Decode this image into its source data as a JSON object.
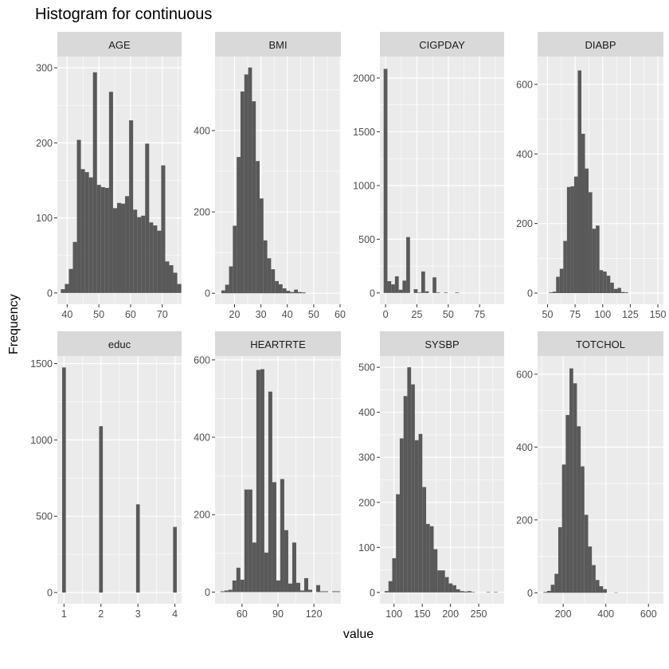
{
  "title": "Histogram for continuous",
  "xlabel": "value",
  "ylabel": "Frequency",
  "colors": {
    "panel_bg": "#ebebeb",
    "strip_bg": "#d9d9d9",
    "bar": "#595959",
    "grid": "#ffffff",
    "tick_text": "#4d4d4d"
  },
  "chart_data": {
    "type": "bar",
    "title": "Histogram for continuous",
    "xlabel": "value",
    "ylabel": "Frequency",
    "layout": "facet_wrap 2 rows x 4 cols, free scales",
    "grid": true,
    "panels": [
      {
        "name": "AGE",
        "xlim": [
          36.9,
          76.1
        ],
        "xticks": [
          40,
          50,
          60,
          70
        ],
        "ylim": [
          -15,
          315
        ],
        "yticks": [
          0,
          100,
          200,
          300
        ],
        "bin_start": 38.0,
        "bin_width": 1.267,
        "values": [
          5,
          12,
          32,
          68,
          204,
          165,
          161,
          154,
          294,
          144,
          141,
          140,
          268,
          113,
          120,
          119,
          129,
          230,
          111,
          101,
          103,
          199,
          94,
          90,
          83,
          170,
          42,
          37,
          27,
          12
        ]
      },
      {
        "name": "BMI",
        "xlim": [
          12.6,
          60.3
        ],
        "xticks": [
          20,
          30,
          40,
          50,
          60
        ],
        "ylim": [
          -27,
          582
        ],
        "yticks": [
          0,
          200,
          400
        ],
        "bin_start": 15.0,
        "bin_width": 1.45,
        "values": [
          7,
          21,
          66,
          166,
          335,
          496,
          538,
          555,
          472,
          325,
          233,
          130,
          86,
          59,
          30,
          22,
          12,
          6,
          3,
          9,
          3,
          2,
          0,
          0,
          0,
          0,
          0,
          0,
          0,
          0
        ]
      },
      {
        "name": "CIGPDAY",
        "xlim": [
          -4.5,
          94.5
        ],
        "xticks": [
          0,
          25,
          50,
          75
        ],
        "ylim": [
          -105,
          2200
        ],
        "yticks": [
          0,
          500,
          1000,
          1500,
          2000
        ],
        "bin_start": -1.5,
        "bin_width": 3.0,
        "values": [
          2085,
          110,
          80,
          155,
          30,
          115,
          520,
          0,
          35,
          5,
          200,
          15,
          0,
          145,
          5,
          0,
          5,
          0,
          0,
          5,
          0,
          0,
          0,
          0,
          0,
          0,
          0,
          0,
          0,
          0
        ]
      },
      {
        "name": "DIABP",
        "xlim": [
          41,
          155
        ],
        "xticks": [
          50,
          75,
          100,
          125,
          150
        ],
        "ylim": [
          -32,
          680
        ],
        "yticks": [
          0,
          200,
          400,
          600
        ],
        "bin_start": 51.25,
        "bin_width": 3.27,
        "values": [
          2,
          4,
          47,
          70,
          150,
          305,
          307,
          335,
          640,
          458,
          358,
          290,
          185,
          194,
          66,
          62,
          50,
          30,
          12,
          15,
          3,
          2,
          0,
          0,
          0,
          0,
          0,
          0,
          0,
          0
        ]
      },
      {
        "name": "educ",
        "xlim": [
          0.82,
          4.18
        ],
        "xticks": [
          1,
          2,
          3,
          4
        ],
        "ylim": [
          -73,
          1550
        ],
        "yticks": [
          0,
          500,
          1000,
          1500
        ],
        "bin_start": 0.95,
        "bin_width": 0.1,
        "values": [
          1475,
          0,
          0,
          0,
          0,
          0,
          0,
          0,
          0,
          0,
          1090,
          0,
          0,
          0,
          0,
          0,
          0,
          0,
          0,
          0,
          578,
          0,
          0,
          0,
          0,
          0,
          0,
          0,
          0,
          0,
          430
        ]
      },
      {
        "name": "HEARTRTE",
        "xlim": [
          37.5,
          142.5
        ],
        "xticks": [
          60,
          90,
          120
        ],
        "ylim": [
          -30,
          610
        ],
        "yticks": [
          0,
          200,
          400,
          600
        ],
        "bin_start": 42.0,
        "bin_width": 3.33,
        "values": [
          2,
          4,
          6,
          30,
          63,
          32,
          265,
          265,
          128,
          574,
          576,
          102,
          518,
          284,
          30,
          292,
          160,
          22,
          128,
          24,
          4,
          36,
          6,
          0,
          18,
          2,
          2,
          0,
          2,
          2
        ]
      },
      {
        "name": "SYSBP",
        "xlim": [
          75,
          295
        ],
        "xticks": [
          100,
          150,
          200,
          250
        ],
        "ylim": [
          -25,
          525
        ],
        "yticks": [
          0,
          100,
          200,
          300,
          400,
          500
        ],
        "bin_start": 83.5,
        "bin_width": 6.67,
        "values": [
          3,
          25,
          76,
          218,
          342,
          436,
          500,
          462,
          338,
          352,
          234,
          152,
          147,
          96,
          49,
          49,
          34,
          20,
          16,
          7,
          3,
          2,
          3,
          1,
          0,
          0,
          0,
          1,
          0,
          1
        ]
      },
      {
        "name": "TOTCHOL",
        "xlim": [
          80,
          670
        ],
        "xticks": [
          200,
          400,
          600
        ],
        "ylim": [
          -30,
          650
        ],
        "yticks": [
          0,
          200,
          400,
          600
        ],
        "bin_start": 107,
        "bin_width": 17.5,
        "values": [
          2,
          5,
          22,
          52,
          180,
          352,
          488,
          616,
          575,
          457,
          347,
          214,
          127,
          76,
          35,
          18,
          10,
          0,
          0,
          1,
          0,
          0,
          0,
          0,
          0,
          0,
          0,
          0,
          0,
          0
        ]
      }
    ]
  }
}
